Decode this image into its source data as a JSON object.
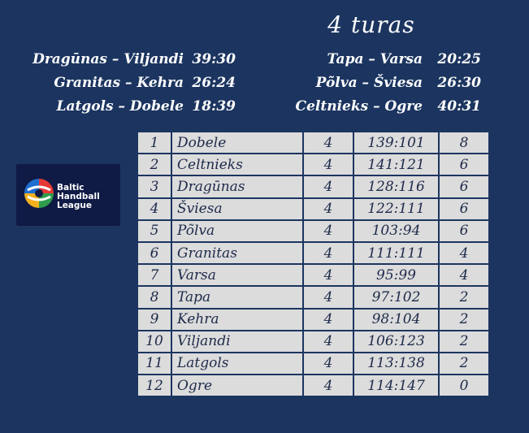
{
  "round_title": "4 turas",
  "results_left": [
    {
      "match": "Dragūnas – Viljandi",
      "score": "39:30"
    },
    {
      "match": "Granitas – Kehra",
      "score": "26:24"
    },
    {
      "match": "Latgols – Dobele",
      "score": "18:39"
    }
  ],
  "results_right": [
    {
      "match": "Tapa – Varsa",
      "score": "20:25"
    },
    {
      "match": "Põlva – Šviesa",
      "score": "26:30"
    },
    {
      "match": "Celtnieks – Ogre",
      "score": "40:31"
    }
  ],
  "logo": {
    "line1": "Baltic",
    "line2": "Handball",
    "line3": "League"
  },
  "standings": [
    {
      "pos": "1",
      "team": "Dobele",
      "played": "4",
      "goals": "139:101",
      "points": "8"
    },
    {
      "pos": "2",
      "team": "Celtnieks",
      "played": "4",
      "goals": "141:121",
      "points": "6"
    },
    {
      "pos": "3",
      "team": "Dragūnas",
      "played": "4",
      "goals": "128:116",
      "points": "6"
    },
    {
      "pos": "4",
      "team": "Šviesa",
      "played": "4",
      "goals": "122:111",
      "points": "6"
    },
    {
      "pos": "5",
      "team": "Põlva",
      "played": "4",
      "goals": "103:94",
      "points": "6"
    },
    {
      "pos": "6",
      "team": "Granitas",
      "played": "4",
      "goals": "111:111",
      "points": "4"
    },
    {
      "pos": "7",
      "team": "Varsa",
      "played": "4",
      "goals": "95:99",
      "points": "4"
    },
    {
      "pos": "8",
      "team": "Tapa",
      "played": "4",
      "goals": "97:102",
      "points": "2"
    },
    {
      "pos": "9",
      "team": "Kehra",
      "played": "4",
      "goals": "98:104",
      "points": "2"
    },
    {
      "pos": "10",
      "team": "Viljandi",
      "played": "4",
      "goals": "106:123",
      "points": "2"
    },
    {
      "pos": "11",
      "team": "Latgols",
      "played": "4",
      "goals": "113:138",
      "points": "2"
    },
    {
      "pos": "12",
      "team": "Ogre",
      "played": "4",
      "goals": "114:147",
      "points": "0"
    }
  ],
  "colors": {
    "background": "#1c3560",
    "table_cell": "#dcdcdc",
    "table_text": "#1d2a4a"
  }
}
